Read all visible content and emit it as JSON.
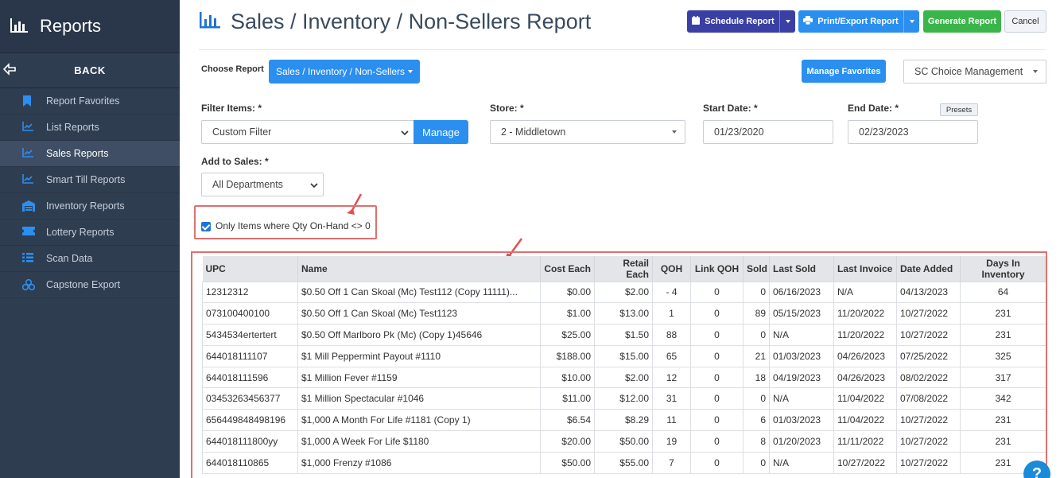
{
  "sidebar": {
    "title": "Reports",
    "back": "BACK",
    "items": [
      {
        "label": "Report Favorites",
        "icon": "bookmark-icon"
      },
      {
        "label": "List Reports",
        "icon": "line-chart-icon"
      },
      {
        "label": "Sales Reports",
        "icon": "line-chart-icon",
        "active": true
      },
      {
        "label": "Smart Till Reports",
        "icon": "line-chart-icon"
      },
      {
        "label": "Inventory Reports",
        "icon": "warehouse-icon"
      },
      {
        "label": "Lottery Reports",
        "icon": "ticket-icon"
      },
      {
        "label": "Scan Data",
        "icon": "list-icon"
      },
      {
        "label": "Capstone Export",
        "icon": "cubes-icon"
      }
    ]
  },
  "header": {
    "title": "Sales / Inventory / Non-Sellers Report",
    "schedule": "Schedule Report",
    "print": "Print/Export Report",
    "generate": "Generate Report",
    "cancel": "Cancel"
  },
  "choose": {
    "label": "Choose Report",
    "value": "Sales / Inventory / Non-Sellers",
    "manage_favorites": "Manage Favorites",
    "company": "SC Choice Management"
  },
  "filters": {
    "filter_items_label": "Filter Items: *",
    "filter_items_value": "Custom Filter",
    "manage": "Manage",
    "store_label": "Store: *",
    "store_value": "2 - Middletown",
    "start_label": "Start Date: *",
    "start_value": "01/23/2020",
    "end_label": "End Date: *",
    "end_value": "02/23/2023",
    "presets": "Presets",
    "add_sales_label": "Add to Sales: *",
    "add_sales_value": "All Departments",
    "qty_checkbox": "Only Items where Qty On-Hand <> 0"
  },
  "table": {
    "columns": [
      "UPC",
      "Name",
      "Cost Each",
      "Retail Each",
      "QOH",
      "Link QOH",
      "Sold",
      "Last Sold",
      "Last Invoice",
      "Date Added",
      "Days In Inventory"
    ],
    "rows": [
      [
        "12312312",
        "$0.50 Off 1 Can Skoal (Mc) Test112 (Copy 11111)...",
        "$0.00",
        "$2.00",
        "- 4",
        "0",
        "0",
        "06/16/2023",
        "N/A",
        "04/13/2023",
        "64"
      ],
      [
        "073100400100",
        "$0.50 Off 1 Can Skoal (Mc) Test1123",
        "$1.00",
        "$13.00",
        "1",
        "0",
        "89",
        "05/15/2023",
        "11/20/2022",
        "10/27/2022",
        "231"
      ],
      [
        "5434534ertertert",
        "$0.50 Off Marlboro Pk (Mc) (Copy 1)45646",
        "$25.00",
        "$1.50",
        "88",
        "0",
        "0",
        "N/A",
        "11/20/2022",
        "10/27/2022",
        "231"
      ],
      [
        "644018111107",
        "$1 Mill Peppermint Payout #1110",
        "$188.00",
        "$15.00",
        "65",
        "0",
        "21",
        "01/03/2023",
        "04/26/2023",
        "07/25/2022",
        "325"
      ],
      [
        "644018111596",
        "$1 Million Fever #1159",
        "$10.00",
        "$2.00",
        "12",
        "0",
        "18",
        "04/19/2023",
        "04/26/2023",
        "08/02/2022",
        "317"
      ],
      [
        "03453263456377",
        "$1 Million Spectacular #1046",
        "$11.00",
        "$12.00",
        "31",
        "0",
        "0",
        "N/A",
        "11/04/2022",
        "07/08/2022",
        "342"
      ],
      [
        "656449848498196",
        "$1,000 A Month For Life #1181 (Copy 1)",
        "$6.54",
        "$8.29",
        "11",
        "0",
        "6",
        "01/03/2023",
        "11/04/2022",
        "10/27/2022",
        "231"
      ],
      [
        "644018111800yy",
        "$1,000 A Week For Life $1180",
        "$20.00",
        "$50.00",
        "19",
        "0",
        "8",
        "01/20/2023",
        "11/11/2022",
        "10/27/2022",
        "231"
      ],
      [
        "644018110865",
        "$1,000 Frenzy #1086",
        "$50.00",
        "$55.00",
        "7",
        "0",
        "0",
        "N/A",
        "10/27/2022",
        "10/27/2022",
        "231"
      ]
    ]
  }
}
